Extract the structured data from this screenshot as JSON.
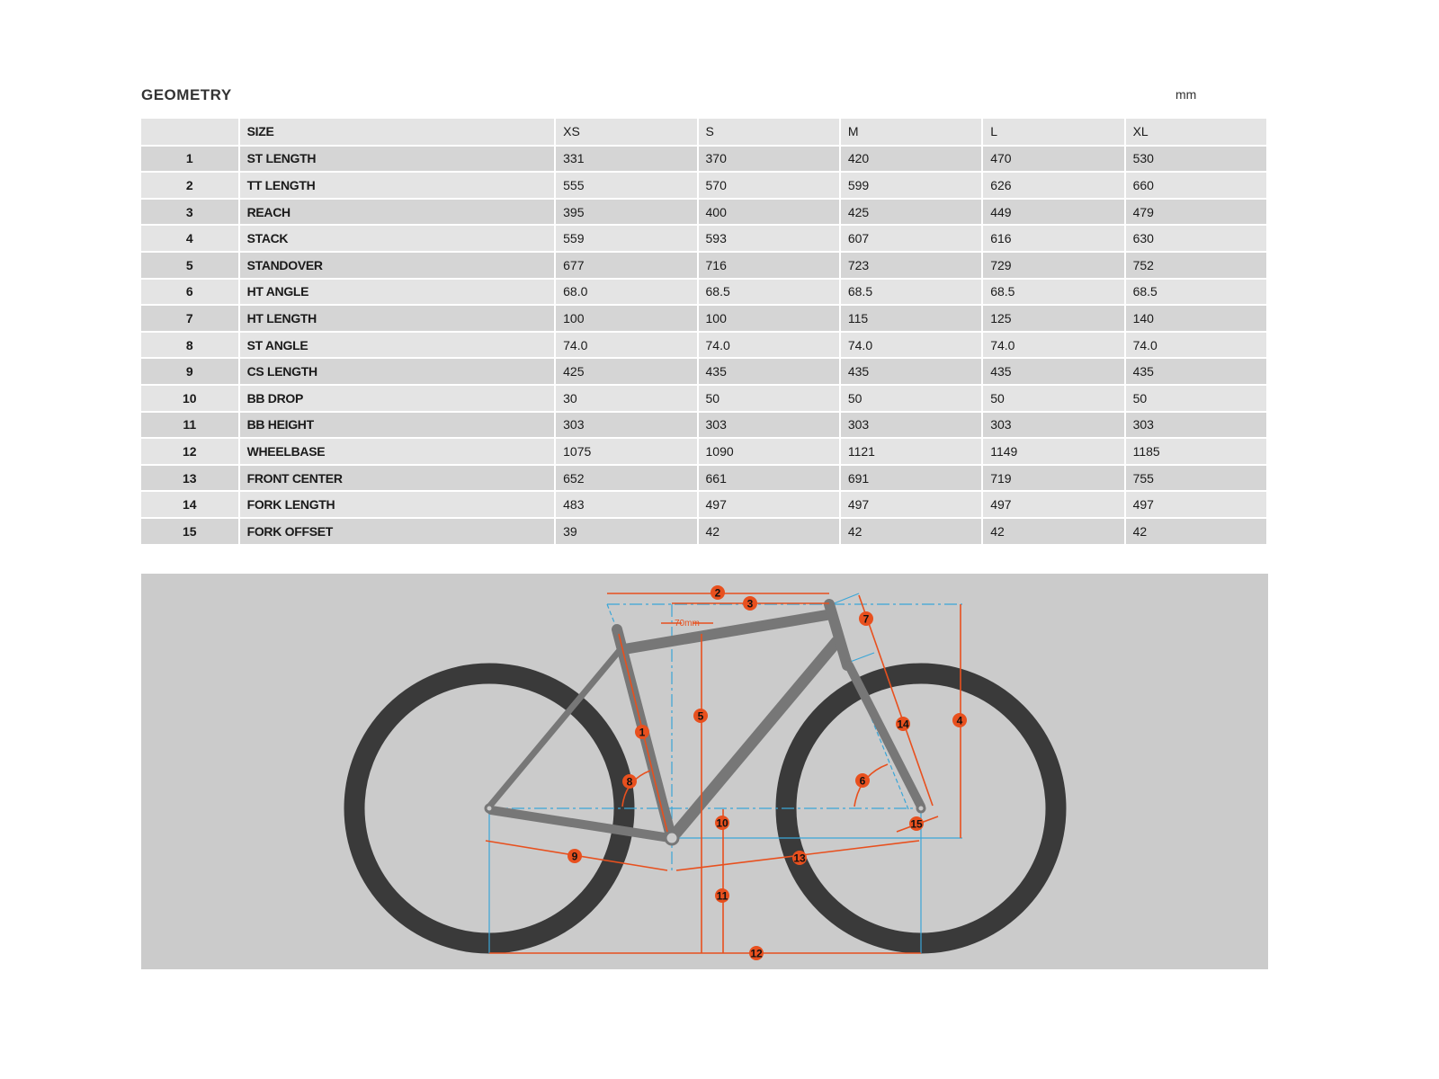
{
  "title": "GEOMETRY",
  "unit": "mm",
  "table": {
    "header": {
      "label": "SIZE",
      "sizes": [
        "XS",
        "S",
        "M",
        "L",
        "XL"
      ]
    },
    "rows": [
      {
        "num": "1",
        "label": "ST LENGTH",
        "values": [
          "331",
          "370",
          "420",
          "470",
          "530"
        ]
      },
      {
        "num": "2",
        "label": "TT LENGTH",
        "values": [
          "555",
          "570",
          "599",
          "626",
          "660"
        ]
      },
      {
        "num": "3",
        "label": "REACH",
        "values": [
          "395",
          "400",
          "425",
          "449",
          "479"
        ]
      },
      {
        "num": "4",
        "label": "STACK",
        "values": [
          "559",
          "593",
          "607",
          "616",
          "630"
        ]
      },
      {
        "num": "5",
        "label": "STANDOVER",
        "values": [
          "677",
          "716",
          "723",
          "729",
          "752"
        ]
      },
      {
        "num": "6",
        "label": "HT ANGLE",
        "values": [
          "68.0",
          "68.5",
          "68.5",
          "68.5",
          "68.5"
        ]
      },
      {
        "num": "7",
        "label": "HT LENGTH",
        "values": [
          "100",
          "100",
          "115",
          "125",
          "140"
        ]
      },
      {
        "num": "8",
        "label": "ST ANGLE",
        "values": [
          "74.0",
          "74.0",
          "74.0",
          "74.0",
          "74.0"
        ]
      },
      {
        "num": "9",
        "label": "CS LENGTH",
        "values": [
          "425",
          "435",
          "435",
          "435",
          "435"
        ]
      },
      {
        "num": "10",
        "label": "BB DROP",
        "values": [
          "30",
          "50",
          "50",
          "50",
          "50"
        ]
      },
      {
        "num": "11",
        "label": "BB HEIGHT",
        "values": [
          "303",
          "303",
          "303",
          "303",
          "303"
        ]
      },
      {
        "num": "12",
        "label": "WHEELBASE",
        "values": [
          "1075",
          "1090",
          "1121",
          "1149",
          "1185"
        ]
      },
      {
        "num": "13",
        "label": "FRONT CENTER",
        "values": [
          "652",
          "661",
          "691",
          "719",
          "755"
        ]
      },
      {
        "num": "14",
        "label": "FORK LENGTH",
        "values": [
          "483",
          "497",
          "497",
          "497",
          "497"
        ]
      },
      {
        "num": "15",
        "label": "FORK OFFSET",
        "values": [
          "39",
          "42",
          "42",
          "42",
          "42"
        ]
      }
    ]
  },
  "diagram": {
    "standover_offset_label": "70mm",
    "colors": {
      "dimension": "#e8501e",
      "guide": "#3aa6d8",
      "frame": "#777777",
      "tire": "#3a3a3a",
      "background": "#cbcbcb"
    }
  }
}
